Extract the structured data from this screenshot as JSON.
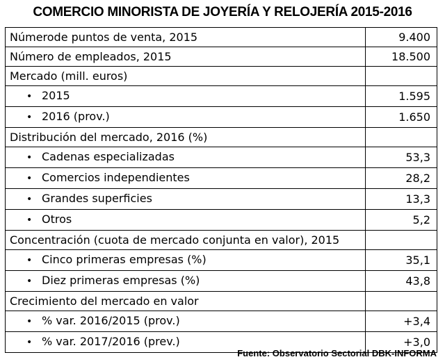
{
  "title": "COMERCIO MINORISTA DE JOYERÍA Y RELOJERÍA 2015-2016",
  "bullet_char": "•",
  "rows": [
    {
      "label": "Númerode puntos de venta, 2015",
      "value": "9.400"
    },
    {
      "label": "Número de empleados, 2015",
      "value": "18.500"
    },
    {
      "label": "Mercado (mill. euros)",
      "value": ""
    },
    {
      "label": "2015",
      "value": "1.595"
    },
    {
      "label": "2016 (prov.)",
      "value": "1.650"
    },
    {
      "label": "Distribución del mercado, 2016 (%)",
      "value": ""
    },
    {
      "label": "Cadenas especializadas",
      "value": "53,3"
    },
    {
      "label": "Comercios independientes",
      "value": "28,2"
    },
    {
      "label": "Grandes superficies",
      "value": "13,3"
    },
    {
      "label": "Otros",
      "value": "5,2"
    },
    {
      "label": "Concentración (cuota de mercado conjunta en valor), 2015",
      "value": ""
    },
    {
      "label": "Cinco primeras empresas (%)",
      "value": "35,1"
    },
    {
      "label": "Diez primeras empresas (%)",
      "value": "43,8"
    },
    {
      "label": "Crecimiento del mercado en valor",
      "value": ""
    },
    {
      "label": "% var. 2016/2015 (prov.)",
      "value": "+3,4"
    },
    {
      "label": "% var. 2017/2016 (prev.)",
      "value": "+3,0"
    }
  ],
  "source": "Fuente: Observatorio Sectorial DBK-INFORMA"
}
